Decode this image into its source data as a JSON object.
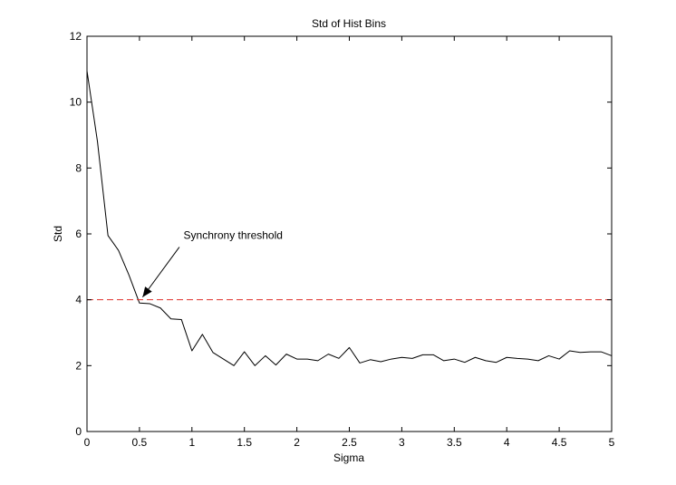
{
  "chart_data": {
    "type": "line",
    "title": "Std of Hist Bins",
    "xlabel": "Sigma",
    "ylabel": "Std",
    "xlim": [
      0,
      5
    ],
    "ylim": [
      0,
      12
    ],
    "xticks": [
      0,
      0.5,
      1,
      1.5,
      2,
      2.5,
      3,
      3.5,
      4,
      4.5,
      5
    ],
    "xtick_labels": [
      "0",
      "0.5",
      "1",
      "1.5",
      "2",
      "2.5",
      "3",
      "3.5",
      "4",
      "4.5",
      "5"
    ],
    "yticks": [
      0,
      2,
      4,
      6,
      8,
      10,
      12
    ],
    "ytick_labels": [
      "0",
      "2",
      "4",
      "6",
      "8",
      "10",
      "12"
    ],
    "grid": false,
    "box": true,
    "series": [
      {
        "color": "#000000",
        "style": "solid",
        "x": [
          0,
          0.1,
          0.2,
          0.3,
          0.4,
          0.5,
          0.6,
          0.7,
          0.8,
          0.9,
          1.0,
          1.1,
          1.2,
          1.3,
          1.4,
          1.5,
          1.6,
          1.7,
          1.8,
          1.9,
          2.0,
          2.1,
          2.2,
          2.3,
          2.4,
          2.5,
          2.6,
          2.7,
          2.8,
          2.9,
          3.0,
          3.1,
          3.2,
          3.3,
          3.4,
          3.5,
          3.6,
          3.7,
          3.8,
          3.9,
          4.0,
          4.1,
          4.2,
          4.3,
          4.4,
          4.5,
          4.6,
          4.7,
          4.8,
          4.9,
          5.0
        ],
        "y": [
          10.95,
          8.8,
          5.95,
          5.5,
          4.75,
          3.9,
          3.88,
          3.75,
          3.42,
          3.4,
          2.45,
          2.95,
          2.4,
          2.2,
          2.0,
          2.42,
          2.0,
          2.3,
          2.02,
          2.35,
          2.2,
          2.2,
          2.15,
          2.35,
          2.22,
          2.55,
          2.08,
          2.18,
          2.12,
          2.2,
          2.25,
          2.22,
          2.33,
          2.33,
          2.15,
          2.2,
          2.1,
          2.25,
          2.15,
          2.1,
          2.25,
          2.22,
          2.2,
          2.15,
          2.3,
          2.2,
          2.45,
          2.4,
          2.42,
          2.42,
          2.3
        ]
      },
      {
        "color": "#e0302b",
        "style": "dashed",
        "x": [
          0,
          5
        ],
        "y": [
          4,
          4
        ]
      }
    ],
    "annotations": [
      {
        "text": "Synchrony threshold",
        "text_at": [
          0.92,
          5.85
        ],
        "arrow_from": [
          0.88,
          5.6
        ],
        "arrow_to": [
          0.53,
          4.08
        ]
      }
    ]
  }
}
